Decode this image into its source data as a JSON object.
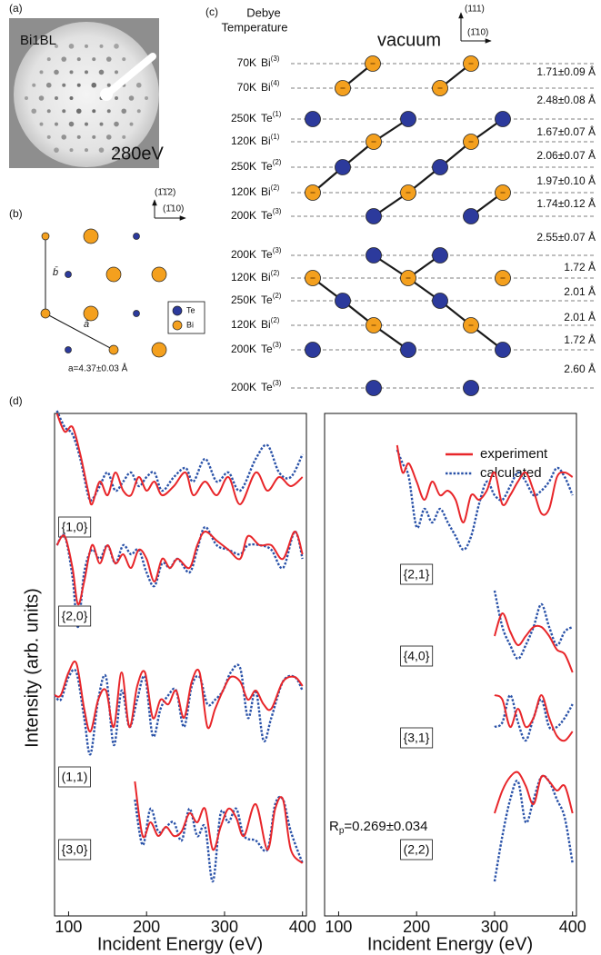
{
  "panel_labels": [
    "(a)",
    "(b)",
    "(c)",
    "(d)"
  ],
  "leed": {
    "sample": "Bi1BL",
    "energy": "280eV"
  },
  "surface_cell": {
    "directions": [
      "(1̄1̄2)",
      "(1̄10)"
    ],
    "vectors": [
      "b̄",
      "ā"
    ],
    "lattice_constant": "a=4.37±0.03 Å",
    "species": [
      {
        "name": "Te",
        "color": "#2c3a9c"
      },
      {
        "name": "Bi",
        "color": "#f4a01e"
      }
    ]
  },
  "stacking": {
    "header": [
      "Debye",
      "Temperature"
    ],
    "surface": "vacuum",
    "directions": [
      "(111)",
      "(1̄10)"
    ],
    "layers": [
      {
        "temperature": "70K",
        "element": "Bi",
        "index": "(3)"
      },
      {
        "temperature": "70K",
        "element": "Bi",
        "index": "(4)"
      },
      {
        "temperature": "250K",
        "element": "Te",
        "index": "(1)"
      },
      {
        "temperature": "120K",
        "element": "Bi",
        "index": "(1)"
      },
      {
        "temperature": "250K",
        "element": "Te",
        "index": "(2)"
      },
      {
        "temperature": "120K",
        "element": "Bi",
        "index": "(2)"
      },
      {
        "temperature": "200K",
        "element": "Te",
        "index": "(3)"
      },
      {
        "temperature": "200K",
        "element": "Te",
        "index": "(3)"
      },
      {
        "temperature": "120K",
        "element": "Bi",
        "index": "(2)"
      },
      {
        "temperature": "250K",
        "element": "Te",
        "index": "(2)"
      },
      {
        "temperature": "120K",
        "element": "Bi",
        "index": "(2)"
      },
      {
        "temperature": "200K",
        "element": "Te",
        "index": "(3)"
      },
      {
        "temperature": "200K",
        "element": "Te",
        "index": "(3)"
      }
    ],
    "spacings": [
      "1.71±0.09 Å",
      "2.48±0.08 Å",
      "1.67±0.07 Å",
      "2.06±0.07 Å",
      "1.97±0.10 Å",
      "1.74±0.12 Å",
      "2.55±0.07 Å",
      "1.72 Å",
      "2.01 Å",
      "2.01 Å",
      "1.72 Å",
      "2.60 Å"
    ]
  },
  "chart_data": {
    "type": "line",
    "x_label": "Incident Energy (eV)",
    "y_label": "Intensity (arb. units)",
    "xlim": [
      82,
      405
    ],
    "xticks": [
      100,
      200,
      300,
      400
    ],
    "series": [
      {
        "name": "experiment",
        "color": "#e8262a",
        "line_style": "solid"
      },
      {
        "name": "calculated",
        "color": "#2a52a8",
        "line_style": "dotted"
      }
    ],
    "r_factor": {
      "symbol": "R",
      "subscript": "p",
      "value": "=0.269±0.034"
    },
    "panels": [
      {
        "beams": [
          {
            "label": "{1,0}",
            "x": [
              85,
              95,
              105,
              115,
              125,
              130,
              140,
              150,
              160,
              170,
              180,
              190,
              200,
              210,
              220,
              235,
              250,
              260,
              275,
              290,
              305,
              320,
              340,
              355,
              370,
              385,
              400
            ],
            "values": [
              [
                10.5,
                8.5,
                9,
                6,
                2,
                0.5,
                3,
                1.5,
                4,
                2,
                1.5,
                3.5,
                2,
                3,
                1.5,
                2.5,
                4,
                1.5,
                3,
                1.5,
                3.5,
                0.5,
                4,
                2,
                3.5,
                2.5,
                3.5
              ],
              [
                10.8,
                9,
                8.2,
                5.5,
                1.5,
                1,
                2.5,
                4,
                2,
                3,
                4,
                2.5,
                3.5,
                4,
                2,
                3.5,
                4.5,
                3,
                5.5,
                3,
                4,
                2,
                5.5,
                7,
                4,
                3.5,
                6
              ]
            ]
          },
          {
            "label": "{2,0}",
            "x": [
              85,
              95,
              105,
              112,
              120,
              130,
              140,
              150,
              160,
              170,
              180,
              190,
              200,
              210,
              220,
              230,
              240,
              255,
              265,
              275,
              290,
              305,
              320,
              330,
              345,
              360,
              375,
              390,
              400
            ],
            "values": [
              [
                9,
                10,
                6.5,
                2.5,
                5,
                9,
                7,
                9,
                7,
                8,
                6.5,
                8.5,
                7.5,
                5,
                7.5,
                6.5,
                7.5,
                6.5,
                9,
                10.5,
                9.5,
                8.5,
                7.5,
                10,
                9,
                9,
                7.5,
                10.5,
                8
              ],
              [
                9,
                10,
                5.5,
                0,
                6,
                8.5,
                7.5,
                9,
                7,
                9,
                8,
                8.5,
                6,
                4.5,
                7,
                6.5,
                7.5,
                6,
                8.5,
                11,
                9,
                8.5,
                8,
                9,
                9,
                8.5,
                6.5,
                10.5,
                7.5
              ]
            ]
          },
          {
            "label": "(1,1)",
            "x": [
              82,
              90,
              100,
              110,
              120,
              128,
              138,
              148,
              158,
              168,
              178,
              188,
              198,
              208,
              218,
              228,
              238,
              248,
              258,
              268,
              278,
              288,
              298,
              308,
              320,
              330,
              340,
              350,
              360,
              375,
              390,
              400
            ],
            "values": [
              [
                6.5,
                6.5,
                9,
                10,
                5,
                2.5,
                6,
                7,
                3,
                9,
                3,
                7.5,
                9,
                4,
                6,
                5.5,
                7,
                4,
                8,
                9,
                3,
                5,
                7,
                8.5,
                8,
                6,
                7,
                5.5,
                5,
                8,
                8.5,
                7.5
              ],
              [
                6.5,
                6,
                8.5,
                9,
                4,
                0,
                6,
                8.5,
                1,
                7,
                3,
                6,
                8.5,
                2,
                5,
                6.5,
                7,
                3,
                7.5,
                8.5,
                5.5,
                6,
                7,
                9,
                9.5,
                4,
                7,
                1.5,
                4,
                8,
                8.5,
                7
              ]
            ]
          },
          {
            "label": "{3,0}",
            "x": [
              185,
              195,
              205,
              215,
              225,
              235,
              245,
              255,
              265,
              275,
              285,
              295,
              305,
              315,
              325,
              340,
              355,
              365,
              375,
              385,
              400
            ],
            "values": [
              [
                14,
                8,
                9.5,
                8,
                9,
                8,
                8.5,
                10.5,
                9.5,
                11,
                6.5,
                9,
                11,
                10,
                8,
                11.5,
                6.5,
                11,
                12,
                6.5,
                5
              ],
              [
                12,
                7,
                11,
                8.5,
                9,
                9.5,
                7.5,
                11,
                8,
                9,
                3,
                10.5,
                9.5,
                11,
                8,
                7.5,
                6.5,
                11.5,
                12,
                8.5,
                5
              ]
            ]
          }
        ]
      },
      {
        "beams": [
          {
            "label": "{2,1}",
            "x": [
              175,
              182,
              190,
              200,
              210,
              220,
              230,
              240,
              250,
              260,
              270,
              280,
              290,
              300,
              310,
              320,
              330,
              340,
              350,
              360,
              370,
              380,
              390,
              400
            ],
            "values": [
              [
                12,
                9,
                10,
                8,
                6,
                8,
                6.5,
                7,
                6,
                3.5,
                6.5,
                6,
                7,
                9,
                5.5,
                6.5,
                8,
                9,
                7,
                4.5,
                5,
                8.5,
                9,
                8.5
              ],
              [
                11.5,
                10,
                8.5,
                3,
                5,
                3.5,
                5,
                3.5,
                2,
                0.5,
                2,
                5.5,
                8,
                6.5,
                6,
                7.5,
                9,
                8,
                6.5,
                7,
                8,
                9.5,
                8.5,
                6.5
              ]
            ]
          },
          {
            "label": "{4,0}",
            "x": [
              300,
              310,
              320,
              330,
              340,
              350,
              360,
              370,
              380,
              390,
              400
            ],
            "values": [
              [
                5,
                7.5,
                5.5,
                4,
                5,
                6,
                6,
                5,
                3.5,
                3,
                1
              ],
              [
                10,
                6,
                4,
                2.5,
                4,
                6,
                8.5,
                6,
                4,
                5.5,
                6
              ]
            ]
          },
          {
            "label": "{3,1}",
            "x": [
              300,
              310,
              320,
              330,
              340,
              350,
              360,
              370,
              380,
              390,
              400
            ],
            "values": [
              [
                6.5,
                6,
                3,
                5,
                3,
                4,
                6.5,
                4,
                2,
                1.5,
                2.5
              ],
              [
                3,
                3.5,
                6.5,
                3.5,
                1.5,
                4,
                6,
                3,
                3,
                4,
                5.5
              ]
            ]
          },
          {
            "label": "(2,2)",
            "x": [
              300,
              310,
              320,
              330,
              340,
              350,
              360,
              370,
              380,
              390,
              400
            ],
            "values": [
              [
                8.5,
                11,
                12.5,
                13,
                11.5,
                9.5,
                12.5,
                12,
                11,
                11.5,
                8.5
              ],
              [
                1,
                6,
                10,
                12,
                7.5,
                10,
                12.5,
                12,
                10,
                8,
                3
              ]
            ]
          }
        ]
      }
    ]
  }
}
